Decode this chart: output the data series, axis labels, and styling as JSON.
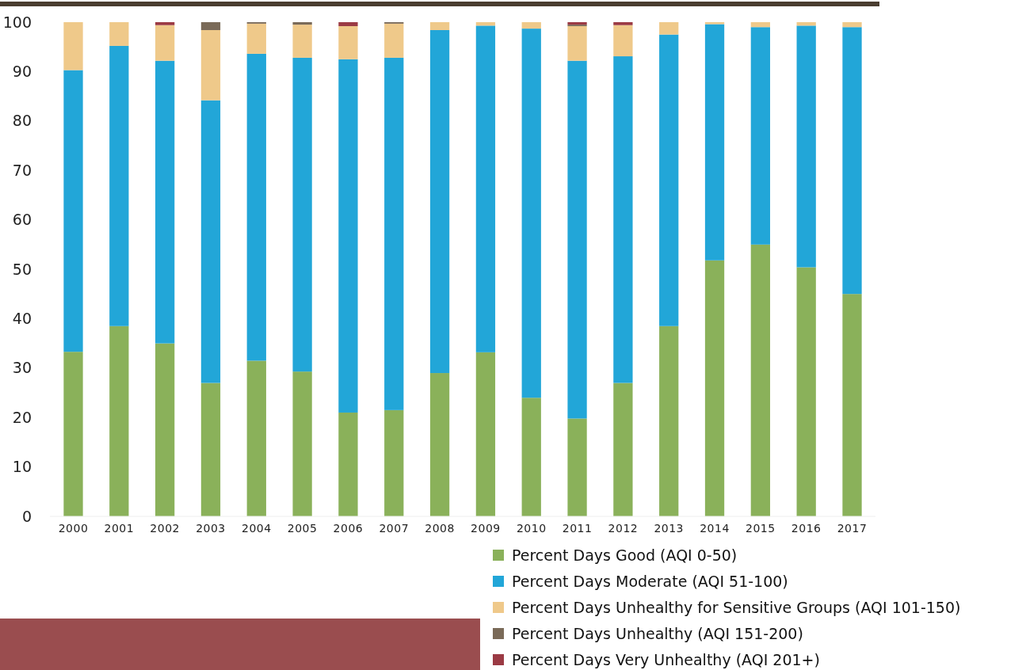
{
  "chart_data": {
    "type": "bar",
    "stacked": true,
    "categories": [
      "2000",
      "2001",
      "2002",
      "2003",
      "2004",
      "2005",
      "2006",
      "2007",
      "2008",
      "2009",
      "2010",
      "2011",
      "2012",
      "2013",
      "2014",
      "2015",
      "2016",
      "2017"
    ],
    "series": [
      {
        "name": "Percent Days Good (AQI 0-50)",
        "color": "#8ab15a",
        "values": [
          33.3,
          38.5,
          35,
          27,
          31.5,
          29.3,
          21,
          21.5,
          29,
          33.2,
          24,
          19.8,
          27,
          38.5,
          51.8,
          55,
          50.4,
          45
        ]
      },
      {
        "name": "Percent Days Moderate (AQI 51-100)",
        "color": "#22a6d8",
        "values": [
          57,
          56.7,
          57.2,
          57.2,
          62.1,
          63.5,
          71.5,
          71.3,
          69.4,
          66.1,
          74.7,
          72.4,
          66.1,
          59,
          47.8,
          44,
          48.9,
          54
        ]
      },
      {
        "name": "Percent Days Unhealthy for Sensitive Groups (AQI 101-150)",
        "color": "#efc98a",
        "values": [
          9.7,
          4.8,
          7.2,
          14.2,
          6.1,
          6.7,
          6.7,
          6.9,
          1.6,
          0.7,
          1.3,
          7,
          6.3,
          2.5,
          0.4,
          1,
          0.7,
          1
        ]
      },
      {
        "name": "Percent Days Unhealthy (AQI 151-200)",
        "color": "#7a6a58",
        "values": [
          0,
          0,
          0,
          1.6,
          0.3,
          0.5,
          0,
          0.3,
          0,
          0,
          0,
          0.3,
          0,
          0,
          0,
          0,
          0,
          0
        ]
      },
      {
        "name": "Percent Days Very Unhealthy (AQI 201+)",
        "color": "#9b3a44",
        "values": [
          0,
          0,
          0.6,
          0,
          0,
          0,
          0.8,
          0,
          0,
          0,
          0,
          0.5,
          0.6,
          0,
          0,
          0,
          0,
          0
        ]
      }
    ],
    "ylim": [
      0,
      100
    ],
    "yticks": [
      0,
      10,
      20,
      30,
      40,
      50,
      60,
      70,
      80,
      90,
      100
    ],
    "grid": false,
    "legend": "bottom right"
  }
}
